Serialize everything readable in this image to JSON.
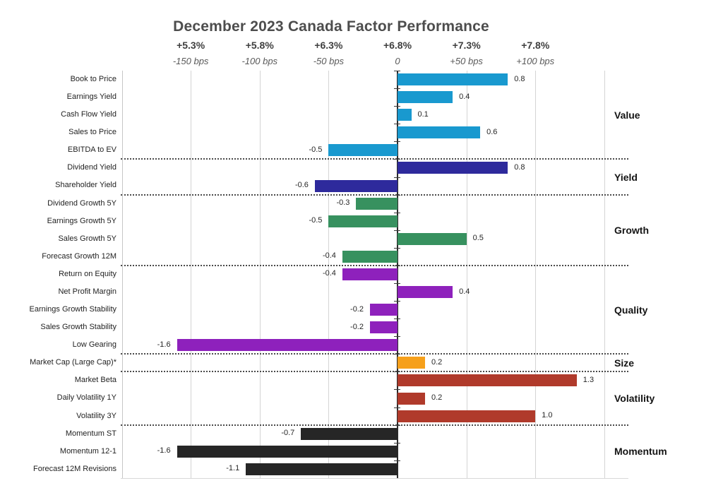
{
  "title": "December 2023 Canada Factor Performance",
  "chart_data": {
    "type": "bar",
    "orientation": "horizontal",
    "title": "December 2023 Canada Factor Performance",
    "axis": {
      "range_bps": [
        -200,
        150
      ],
      "gridline_step_bps": 50,
      "score_scale_bps_per_unit": 100,
      "ticks": [
        {
          "pct": "+5.3%",
          "bps_label": "-150 bps",
          "bps_value": -150
        },
        {
          "pct": "+5.8%",
          "bps_label": "-100 bps",
          "bps_value": -100
        },
        {
          "pct": "+6.3%",
          "bps_label": "-50 bps",
          "bps_value": -50
        },
        {
          "pct": "+6.8%",
          "bps_label": "0",
          "bps_value": 0
        },
        {
          "pct": "+7.3%",
          "bps_label": "+50 bps",
          "bps_value": 50
        },
        {
          "pct": "+7.8%",
          "bps_label": "+100 bps",
          "bps_value": 100
        }
      ]
    },
    "groups": [
      {
        "name": "Value",
        "color": "#1999CF",
        "factors": [
          {
            "label": "Book to Price",
            "value": 0.8
          },
          {
            "label": "Earnings Yield",
            "value": 0.4
          },
          {
            "label": "Cash Flow Yield",
            "value": 0.1
          },
          {
            "label": "Sales to Price",
            "value": 0.6
          },
          {
            "label": "EBITDA to EV",
            "value": -0.5
          }
        ]
      },
      {
        "name": "Yield",
        "color": "#2E2A9C",
        "factors": [
          {
            "label": "Dividend Yield",
            "value": 0.8
          },
          {
            "label": "Shareholder Yield",
            "value": -0.6
          }
        ]
      },
      {
        "name": "Growth",
        "color": "#37915F",
        "factors": [
          {
            "label": "Dividend Growth 5Y",
            "value": -0.3
          },
          {
            "label": "Earnings Growth 5Y",
            "value": -0.5
          },
          {
            "label": "Sales Growth 5Y",
            "value": 0.5
          },
          {
            "label": "Forecast Growth 12M",
            "value": -0.4
          }
        ]
      },
      {
        "name": "Quality",
        "color": "#8E21BC",
        "factors": [
          {
            "label": "Return on Equity",
            "value": -0.4
          },
          {
            "label": "Net Profit Margin",
            "value": 0.4
          },
          {
            "label": "Earnings Growth Stability",
            "value": -0.2
          },
          {
            "label": "Sales Growth Stability",
            "value": -0.2
          },
          {
            "label": "Low Gearing",
            "value": -1.6
          }
        ]
      },
      {
        "name": "Size",
        "color": "#F6A01B",
        "factors": [
          {
            "label": "Market Cap (Large Cap)*",
            "value": 0.2
          }
        ]
      },
      {
        "name": "Volatility",
        "color": "#B03A2B",
        "factors": [
          {
            "label": "Market Beta",
            "value": 1.3
          },
          {
            "label": "Daily Volatility 1Y",
            "value": 0.2
          },
          {
            "label": "Volatility 3Y",
            "value": 1.0
          }
        ]
      },
      {
        "name": "Momentum",
        "color": "#262626",
        "factors": [
          {
            "label": "Momentum ST",
            "value": -0.7
          },
          {
            "label": "Momentum 12-1",
            "value": -1.6
          },
          {
            "label": "Forecast 12M Revisions",
            "value": -1.1
          }
        ]
      }
    ]
  }
}
